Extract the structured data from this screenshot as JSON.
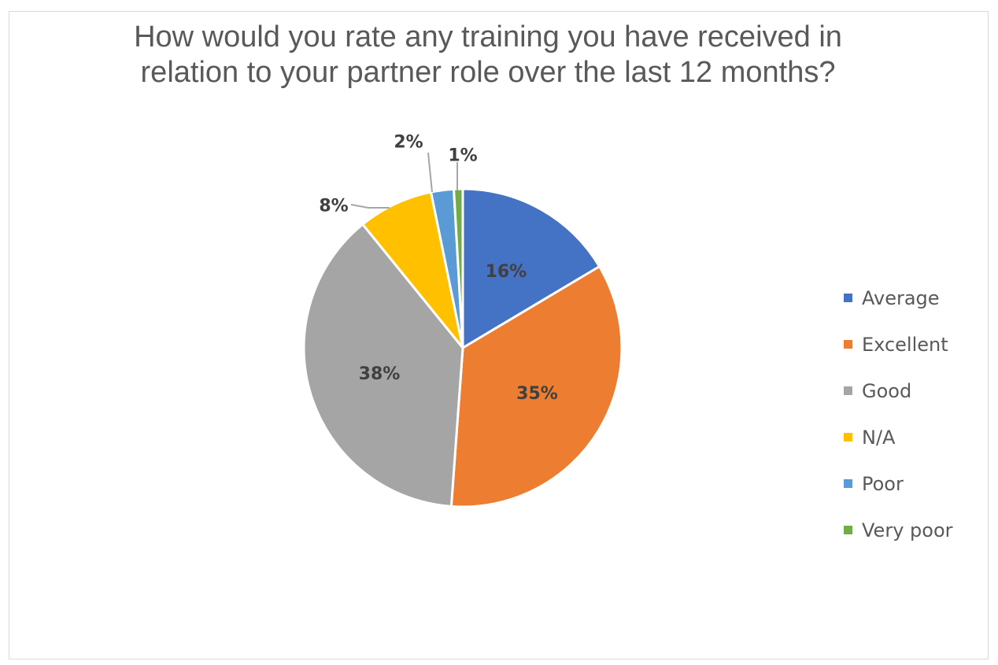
{
  "chart_data": {
    "type": "pie",
    "title": "How would you rate any training you have received in relation to your partner role over the last 12 months?",
    "categories": [
      "Average",
      "Excellent",
      "Good",
      "N/A",
      "Poor",
      "Very poor"
    ],
    "values": [
      16.4,
      34.6,
      37.9,
      7.6,
      2.3,
      0.9
    ],
    "labels": [
      "16%",
      "35%",
      "38%",
      "8%",
      "2%",
      "1%"
    ],
    "colors": [
      "#4472C4",
      "#ED7D31",
      "#A5A5A5",
      "#FFC000",
      "#5B9BD5",
      "#70AD47"
    ],
    "label_colors": [
      "#404040",
      "#404040",
      "#404040",
      "#404040",
      "#404040",
      "#404040"
    ],
    "start_angle_deg": 0,
    "direction": "clockwise",
    "legend_position": "right",
    "legend": [
      {
        "label": "Average",
        "color": "#4472C4"
      },
      {
        "label": "Excellent",
        "color": "#ED7D31"
      },
      {
        "label": "Good",
        "color": "#A5A5A5"
      },
      {
        "label": "N/A",
        "color": "#FFC000"
      },
      {
        "label": "Poor",
        "color": "#5B9BD5"
      },
      {
        "label": "Very poor",
        "color": "#70AD47"
      }
    ]
  }
}
